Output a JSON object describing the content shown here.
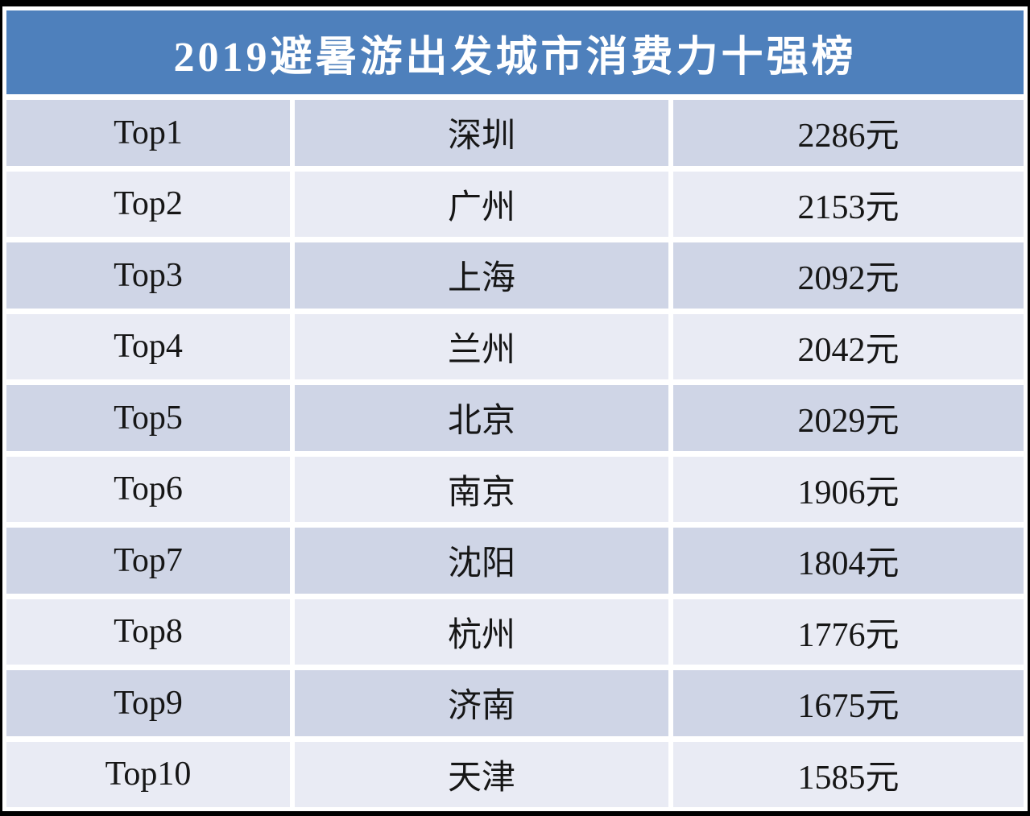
{
  "title": "2019避暑游出发城市消费力十强榜",
  "table": {
    "rows": [
      {
        "rank": "Top1",
        "city": "深圳",
        "amount": "2286元"
      },
      {
        "rank": "Top2",
        "city": "广州",
        "amount": "2153元"
      },
      {
        "rank": "Top3",
        "city": "上海",
        "amount": "2092元"
      },
      {
        "rank": "Top4",
        "city": "兰州",
        "amount": "2042元"
      },
      {
        "rank": "Top5",
        "city": "北京",
        "amount": "2029元"
      },
      {
        "rank": "Top6",
        "city": "南京",
        "amount": "1906元"
      },
      {
        "rank": "Top7",
        "city": "沈阳",
        "amount": "1804元"
      },
      {
        "rank": "Top8",
        "city": "杭州",
        "amount": "1776元"
      },
      {
        "rank": "Top9",
        "city": "济南",
        "amount": "1675元"
      },
      {
        "rank": "Top10",
        "city": "天津",
        "amount": "1585元"
      }
    ]
  },
  "chart_data": {
    "type": "table",
    "title": "2019避暑游出发城市消费力十强榜",
    "ranks": [
      "Top1",
      "Top2",
      "Top3",
      "Top4",
      "Top5",
      "Top6",
      "Top7",
      "Top8",
      "Top9",
      "Top10"
    ],
    "categories": [
      "深圳",
      "广州",
      "上海",
      "兰州",
      "北京",
      "南京",
      "沈阳",
      "杭州",
      "济南",
      "天津"
    ],
    "values": [
      2286,
      2153,
      2092,
      2042,
      2029,
      1906,
      1804,
      1776,
      1675,
      1585
    ],
    "unit": "元"
  },
  "colors": {
    "header_bg": "#4E80BC",
    "row_dark": "#CFD5E6",
    "row_light": "#E9EBF4",
    "title_text": "#FFFFFF",
    "cell_text": "#161616",
    "frame": "#000000",
    "gap": "#FFFFFF"
  }
}
